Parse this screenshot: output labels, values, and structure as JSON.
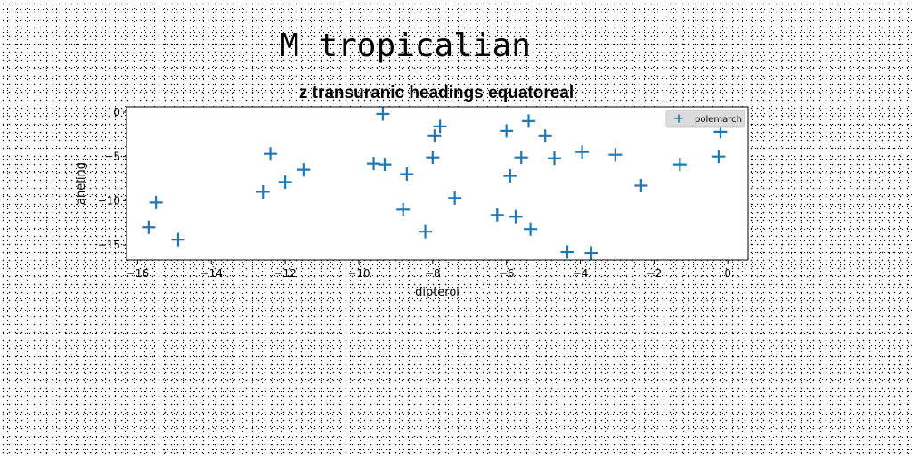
{
  "suptitle": "M tropicalian",
  "chart_data": {
    "type": "scatter",
    "title": "z transuranic headings equatoreal",
    "xlabel": "dipteroi",
    "ylabel": "aneling",
    "xlim": [
      -16.3,
      0.55
    ],
    "ylim": [
      -16.7,
      0.6
    ],
    "xticks": [
      -16,
      -14,
      -12,
      -10,
      -8,
      -6,
      -4,
      -2,
      0
    ],
    "xtick_labels": [
      "−16",
      "−14",
      "−12",
      "−10",
      "−8",
      "−6",
      "−4",
      "−2",
      "0"
    ],
    "yticks": [
      0,
      -5,
      -10,
      -15
    ],
    "ytick_labels": [
      "0",
      "−5",
      "−10",
      "−15"
    ],
    "grid": false,
    "legend_position": "top-right",
    "marker": "plus",
    "series": [
      {
        "name": "polemarch",
        "color": "#1f77b4",
        "x": [
          -15.7,
          -15.5,
          -14.9,
          -12.6,
          -12.4,
          -12.0,
          -11.5,
          -9.6,
          -9.35,
          -9.3,
          -8.7,
          -8.8,
          -8.2,
          -8.0,
          -7.95,
          -7.8,
          -7.4,
          -6.25,
          -6.0,
          -5.9,
          -5.75,
          -5.6,
          -5.4,
          -5.35,
          -4.95,
          -4.7,
          -4.35,
          -3.95,
          -3.7,
          -3.05,
          -2.35,
          -1.3,
          -0.25,
          -0.2
        ],
        "y": [
          -13.0,
          -10.2,
          -14.4,
          -9.0,
          -4.7,
          -7.9,
          -6.5,
          -5.8,
          -0.2,
          -5.9,
          -7.0,
          -11.0,
          -13.5,
          -5.1,
          -2.7,
          -1.6,
          -9.7,
          -11.6,
          -2.1,
          -7.2,
          -11.8,
          -5.1,
          -1.0,
          -13.2,
          -2.7,
          -5.2,
          -15.8,
          -4.5,
          -15.9,
          -4.8,
          -8.3,
          -5.9,
          -5.0,
          -2.2
        ]
      }
    ]
  }
}
